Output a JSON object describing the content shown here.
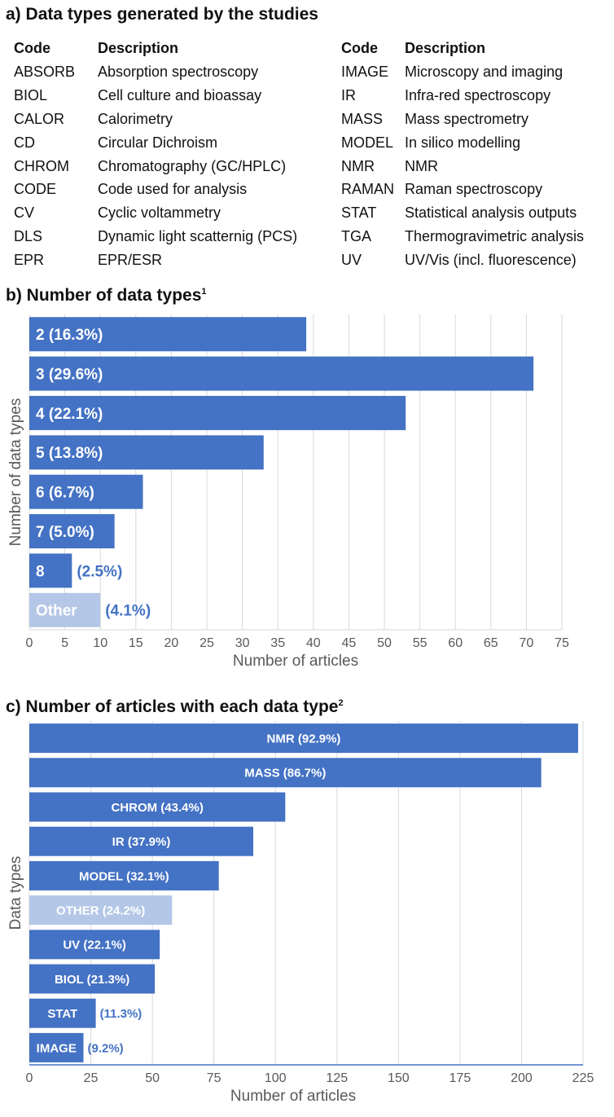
{
  "section_a": {
    "label": "a)",
    "title": "Data types generated by the studies",
    "header_code": "Code",
    "header_description": "Description",
    "left_rows": [
      {
        "code": "ABSORB",
        "description": "Absorption spectroscopy"
      },
      {
        "code": "BIOL",
        "description": "Cell culture and bioassay"
      },
      {
        "code": "CALOR",
        "description": "Calorimetry"
      },
      {
        "code": "CD",
        "description": "Circular Dichroism"
      },
      {
        "code": "CHROM",
        "description": "Chromatography (GC/HPLC)"
      },
      {
        "code": "CODE",
        "description": "Code used for analysis"
      },
      {
        "code": "CV",
        "description": "Cyclic voltammetry"
      },
      {
        "code": "DLS",
        "description": "Dynamic light scatternig (PCS)"
      },
      {
        "code": "EPR",
        "description": "EPR/ESR"
      }
    ],
    "right_rows": [
      {
        "code": "IMAGE",
        "description": "Microscopy and imaging"
      },
      {
        "code": "IR",
        "description": "Infra-red spectroscopy"
      },
      {
        "code": "MASS",
        "description": "Mass spectrometry"
      },
      {
        "code": "MODEL",
        "description": "In silico modelling"
      },
      {
        "code": "NMR",
        "description": "NMR"
      },
      {
        "code": "RAMAN",
        "description": "Raman spectroscopy"
      },
      {
        "code": "STAT",
        "description": "Statistical analysis outputs"
      },
      {
        "code": "TGA",
        "description": "Thermogravimetric analysis"
      },
      {
        "code": "UV",
        "description": "UV/Vis (incl. fluorescence)"
      }
    ]
  },
  "section_b": {
    "label": "b)",
    "title": "Number of data types",
    "superscript": "1"
  },
  "section_c": {
    "label": "c)",
    "title": "Number of articles with each data type",
    "superscript": "2"
  },
  "colors": {
    "bar": "#4472c4",
    "bar_other": "#b4c7e7",
    "grid": "#d9d9d9",
    "axis_text": "#595959",
    "outside_label": "#4472c4"
  },
  "chart_data": [
    {
      "type": "bar",
      "orientation": "horizontal",
      "title": "Number of data types",
      "xlabel": "Number of articles",
      "ylabel": "Number of data types",
      "xlim": [
        0,
        75
      ],
      "xticks": [
        0,
        5,
        10,
        15,
        20,
        25,
        30,
        35,
        40,
        45,
        50,
        55,
        60,
        65,
        70,
        75
      ],
      "categories": [
        "2",
        "3",
        "4",
        "5",
        "6",
        "7",
        "8",
        "Other"
      ],
      "values": [
        39,
        71,
        53,
        33,
        16,
        12,
        6,
        10
      ],
      "percent_labels": [
        "(16.3%)",
        "(29.6%)",
        "(22.1%)",
        "(13.8%)",
        "(6.7%)",
        "(5.0%)",
        "(2.5%)",
        "(4.1%)"
      ],
      "other_flags": [
        false,
        false,
        false,
        false,
        false,
        false,
        false,
        true
      ],
      "label_outside": [
        false,
        false,
        false,
        false,
        false,
        false,
        true,
        true
      ]
    },
    {
      "type": "bar",
      "orientation": "horizontal",
      "title": "Number of articles with each data type",
      "xlabel": "Number of articles",
      "ylabel": "Data types",
      "xlim": [
        0,
        225
      ],
      "xticks": [
        0,
        25,
        50,
        75,
        100,
        125,
        150,
        175,
        200,
        225
      ],
      "categories": [
        "NMR",
        "MASS",
        "CHROM",
        "IR",
        "MODEL",
        "OTHER",
        "UV",
        "BIOL",
        "STAT",
        "IMAGE"
      ],
      "values": [
        223,
        208,
        104,
        91,
        77,
        58,
        53,
        51,
        27,
        22
      ],
      "percent_labels": [
        "(92.9%)",
        "(86.7%)",
        "(43.4%)",
        "(37.9%)",
        "(32.1%)",
        "(24.2%)",
        "(22.1%)",
        "(21.3%)",
        "(11.3%)",
        "(9.2%)"
      ],
      "other_flags": [
        false,
        false,
        false,
        false,
        false,
        true,
        false,
        false,
        false,
        false
      ],
      "label_outside": [
        false,
        false,
        false,
        false,
        false,
        false,
        false,
        false,
        true,
        true
      ]
    }
  ]
}
